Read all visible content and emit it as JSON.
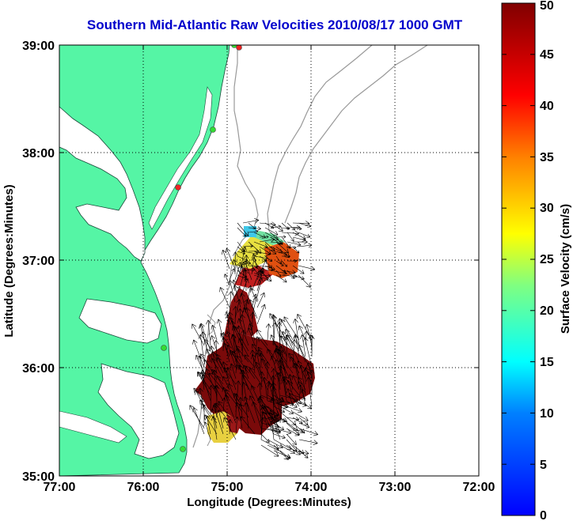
{
  "map": {
    "title": "Southern Mid-Atlantic Raw Velocities 2010/08/17 1000 GMT",
    "xlabel": "Longitude (Degrees:Minutes)",
    "ylabel": "Latitude (Degrees:Minutes)",
    "lon_ticks": [
      "77:00",
      "76:00",
      "75:00",
      "74:00",
      "73:00",
      "72:00"
    ],
    "lat_ticks": [
      "39:00",
      "38:00",
      "37:00",
      "36:00",
      "35:00"
    ],
    "lon_range": [
      -77,
      -72
    ],
    "lat_range": [
      35,
      39
    ],
    "grid": "dotted",
    "land_color": "#55f5a5",
    "ocean_color": "#ffffff",
    "bathymetry_color": "#999999"
  },
  "colorbar": {
    "label": "Surface Velocity (cm/s)",
    "ticks": [
      "0",
      "5",
      "10",
      "15",
      "20",
      "25",
      "30",
      "35",
      "40",
      "45",
      "50"
    ],
    "range": [
      0,
      50
    ],
    "colormap": "jet"
  },
  "stations": [
    {
      "status": "active",
      "color": "#33dd33"
    },
    {
      "status": "active",
      "color": "#33dd33"
    },
    {
      "status": "active",
      "color": "#33dd33"
    },
    {
      "status": "active",
      "color": "#33dd33"
    },
    {
      "status": "offline",
      "color": "#ee2222"
    },
    {
      "status": "offline",
      "color": "#ee2222"
    }
  ]
}
